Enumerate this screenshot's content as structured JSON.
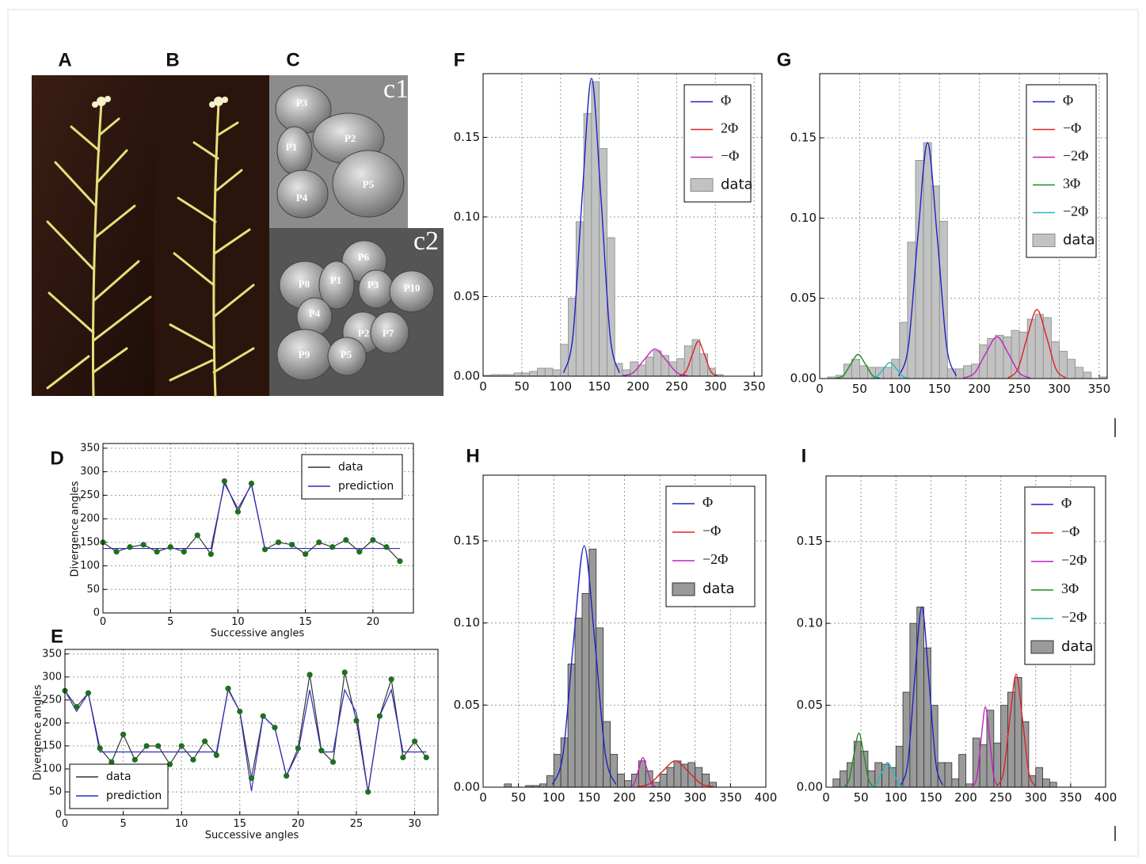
{
  "image_panels": {
    "labels": [
      "A",
      "B",
      "C"
    ],
    "c1": {
      "label": "c1",
      "cells": [
        "P3",
        "P1",
        "P2",
        "P4",
        "P5"
      ]
    },
    "c2": {
      "label": "c2",
      "cells": [
        "P6",
        "P8",
        "P1",
        "P3",
        "P10",
        "P4",
        "P2",
        "P7",
        "P9",
        "P5"
      ]
    }
  },
  "chart_data": [
    {
      "type": "line",
      "panel_label": "D",
      "x_label": "Successive angles",
      "y_label": "Divergence angles",
      "x": [
        0,
        1,
        2,
        3,
        4,
        5,
        6,
        7,
        8,
        9,
        10,
        11,
        12,
        13,
        14,
        15,
        16,
        17,
        18,
        19,
        20,
        21,
        22
      ],
      "series": [
        {
          "name": "data",
          "color": "#333333",
          "marker_color": "#1f6f1f",
          "values": [
            150,
            130,
            140,
            145,
            130,
            140,
            130,
            165,
            125,
            280,
            215,
            275,
            135,
            150,
            145,
            125,
            150,
            140,
            155,
            130,
            155,
            140,
            110
          ]
        },
        {
          "name": "prediction",
          "color": "#2b2bbf",
          "values": [
            137,
            137,
            137,
            137,
            137,
            137,
            137,
            137,
            137,
            275,
            222,
            272,
            137,
            137,
            137,
            137,
            137,
            137,
            137,
            137,
            137,
            137,
            137
          ]
        }
      ],
      "xlim": [
        0,
        23
      ],
      "ylim": [
        0,
        360
      ],
      "xticks": [
        0,
        5,
        10,
        15,
        20
      ],
      "yticks": [
        0,
        50,
        100,
        150,
        200,
        250,
        300,
        350
      ],
      "grid": true,
      "legend": "upper right"
    },
    {
      "type": "line",
      "panel_label": "E",
      "x_label": "Successive angles",
      "y_label": "Divergence angles",
      "x": [
        0,
        1,
        2,
        3,
        4,
        5,
        6,
        7,
        8,
        9,
        10,
        11,
        12,
        13,
        14,
        15,
        16,
        17,
        18,
        19,
        20,
        21,
        22,
        23,
        24,
        25,
        26,
        27,
        28,
        29,
        30,
        31
      ],
      "series": [
        {
          "name": "data",
          "color": "#333333",
          "marker_color": "#1f6f1f",
          "values": [
            270,
            235,
            265,
            145,
            115,
            175,
            120,
            150,
            150,
            110,
            150,
            120,
            160,
            130,
            275,
            225,
            80,
            215,
            190,
            85,
            145,
            305,
            140,
            115,
            310,
            205,
            50,
            215,
            295,
            125,
            160,
            125
          ]
        },
        {
          "name": "prediction",
          "color": "#2b2bbf",
          "values": [
            270,
            225,
            265,
            137,
            137,
            137,
            137,
            137,
            137,
            137,
            137,
            137,
            137,
            137,
            272,
            225,
            52,
            215,
            190,
            85,
            137,
            272,
            137,
            137,
            272,
            222,
            50,
            215,
            272,
            137,
            137,
            137
          ]
        }
      ],
      "xlim": [
        0,
        32
      ],
      "ylim": [
        0,
        360
      ],
      "xticks": [
        0,
        5,
        10,
        15,
        20,
        25,
        30
      ],
      "yticks": [
        0,
        50,
        100,
        150,
        200,
        250,
        300,
        350
      ],
      "grid": true,
      "legend": "lower left"
    },
    {
      "type": "histogram",
      "panel_label": "F",
      "name": "data",
      "color": "#c2c2c2",
      "edge_color": "#8a8a8a",
      "bins": [
        0,
        10,
        20,
        30,
        40,
        50,
        60,
        70,
        80,
        90,
        100,
        110,
        120,
        130,
        140,
        150,
        160,
        170,
        180,
        190,
        200,
        210,
        220,
        230,
        240,
        250,
        260,
        270,
        280,
        290,
        300,
        310,
        320,
        330,
        340,
        350,
        360
      ],
      "values": [
        0.0005,
        0.001,
        0.001,
        0.001,
        0.002,
        0.002,
        0.003,
        0.005,
        0.005,
        0.004,
        0.02,
        0.049,
        0.097,
        0.165,
        0.185,
        0.143,
        0.087,
        0.008,
        0.004,
        0.009,
        0.007,
        0.012,
        0.016,
        0.013,
        0.009,
        0.011,
        0.019,
        0.023,
        0.014,
        0.005,
        0.001,
        0,
        0,
        0,
        0,
        0
      ],
      "series": [
        {
          "name": "Φ",
          "color": "#2020c8",
          "x": [
            104,
            116,
            128,
            140,
            152,
            164,
            176
          ],
          "values": [
            0.0021,
            0.0253,
            0.1134,
            0.187,
            0.1134,
            0.0253,
            0.0021
          ]
        },
        {
          "name": "2Φ",
          "color": "#e02020",
          "x": [
            254,
            262,
            270,
            278,
            286,
            294,
            302
          ],
          "values": [
            0.0002,
            0.003,
            0.0133,
            0.022,
            0.0133,
            0.003,
            0.0002
          ]
        },
        {
          "name": "−Φ",
          "color": "#c020c0",
          "x": [
            180,
            194,
            208,
            222,
            236,
            250,
            264
          ],
          "values": [
            0.0002,
            0.0023,
            0.0103,
            0.017,
            0.0103,
            0.0023,
            0.0002
          ]
        }
      ],
      "xlim": [
        0,
        360
      ],
      "ylim": [
        0,
        0.19
      ],
      "xticks": [
        0,
        50,
        100,
        150,
        200,
        250,
        300,
        350
      ],
      "yticks": [
        {
          "value": 0,
          "label": "0.00"
        },
        0.05,
        {
          "value": 0.1,
          "label": "0.10"
        },
        0.15
      ],
      "grid": true,
      "legend": "upper right"
    },
    {
      "type": "histogram",
      "panel_label": "G",
      "name": "data",
      "color": "#c2c2c2",
      "edge_color": "#8a8a8a",
      "bins": [
        0,
        10,
        20,
        30,
        40,
        50,
        60,
        70,
        80,
        90,
        100,
        110,
        120,
        130,
        140,
        150,
        160,
        170,
        180,
        190,
        200,
        210,
        220,
        230,
        240,
        250,
        260,
        270,
        280,
        290,
        300,
        310,
        320,
        330,
        340,
        350,
        360
      ],
      "values": [
        0,
        0.001,
        0.002,
        0.009,
        0.012,
        0.008,
        0.007,
        0.007,
        0.007,
        0.012,
        0.035,
        0.085,
        0.136,
        0.147,
        0.12,
        0.098,
        0.006,
        0.006,
        0.008,
        0.009,
        0.021,
        0.025,
        0.027,
        0.026,
        0.03,
        0.029,
        0.037,
        0.04,
        0.038,
        0.023,
        0.017,
        0.012,
        0.007,
        0.004,
        0,
        0.001
      ],
      "series": [
        {
          "name": "Φ",
          "color": "#2020c8",
          "x": [
            99,
            111,
            123,
            135,
            147,
            159,
            171
          ],
          "values": [
            0.0016,
            0.0199,
            0.0892,
            0.147,
            0.0892,
            0.0199,
            0.0016
          ]
        },
        {
          "name": "−Φ",
          "color": "#e02020",
          "x": [
            236,
            248,
            260,
            272,
            284,
            296,
            308
          ],
          "values": [
            0.0005,
            0.0058,
            0.0261,
            0.043,
            0.0261,
            0.0058,
            0.0005
          ]
        },
        {
          "name": "−2Φ",
          "color": "#c020c0",
          "x": [
            180,
            194,
            208,
            222,
            236,
            250,
            264
          ],
          "values": [
            0.0003,
            0.0035,
            0.0158,
            0.026,
            0.0158,
            0.0035,
            0.0003
          ]
        },
        {
          "name": "3Φ",
          "color": "#208a20",
          "x": [
            21,
            30,
            39,
            48,
            57,
            66,
            75
          ],
          "values": [
            0.0002,
            0.002,
            0.0091,
            0.015,
            0.0091,
            0.002,
            0.0002
          ]
        },
        {
          "name": "−2Φ",
          "color": "#20b8c0",
          "x": [
            64,
            72,
            80,
            88,
            96,
            104,
            112
          ],
          "values": [
            0.0001,
            0.0014,
            0.0061,
            0.01,
            0.0061,
            0.0014,
            0.0001
          ]
        }
      ],
      "xlim": [
        0,
        360
      ],
      "ylim": [
        0,
        0.19
      ],
      "xticks": [
        0,
        50,
        100,
        150,
        200,
        250,
        300,
        350
      ],
      "yticks": [
        {
          "value": 0,
          "label": "0.00"
        },
        0.05,
        {
          "value": 0.1,
          "label": "0.10"
        },
        0.15
      ],
      "grid": true,
      "legend": "upper right"
    },
    {
      "type": "histogram",
      "panel_label": "H",
      "name": "data",
      "color": "#9a9a9a",
      "edge_color": "#333333",
      "bins": [
        0,
        10,
        20,
        30,
        40,
        50,
        60,
        70,
        80,
        90,
        100,
        110,
        120,
        130,
        140,
        150,
        160,
        170,
        180,
        190,
        200,
        210,
        220,
        230,
        240,
        250,
        260,
        270,
        280,
        290,
        300,
        310,
        320,
        330
      ],
      "values": [
        0,
        0,
        0,
        0.002,
        0,
        0,
        0.001,
        0.001,
        0.002,
        0.007,
        0.02,
        0.03,
        0.075,
        0.103,
        0.118,
        0.145,
        0.097,
        0.04,
        0.02,
        0.008,
        0.004,
        0.008,
        0.016,
        0.01,
        0.003,
        0.008,
        0.012,
        0.016,
        0.014,
        0.015,
        0.012,
        0.008,
        0.003
      ],
      "series": [
        {
          "name": "Φ",
          "color": "#2020c8",
          "x": [
            98,
            113,
            128,
            143,
            158,
            173,
            188
          ],
          "values": [
            0.0016,
            0.0199,
            0.0892,
            0.147,
            0.0892,
            0.0199,
            0.0016
          ]
        },
        {
          "name": "−Φ",
          "color": "#e02020",
          "x": [
            218,
            236,
            254,
            272,
            290,
            308,
            326
          ],
          "values": [
            0.0002,
            0.0022,
            0.0097,
            0.016,
            0.0097,
            0.0022,
            0.0002
          ]
        },
        {
          "name": "−2Φ",
          "color": "#c020c0",
          "x": [
            208,
            214,
            220,
            226,
            232,
            238,
            244
          ],
          "values": [
            0.0002,
            0.0024,
            0.0109,
            0.018,
            0.0109,
            0.0024,
            0.0002
          ]
        }
      ],
      "xlim": [
        0,
        400
      ],
      "ylim": [
        0,
        0.19
      ],
      "xticks": [
        0,
        50,
        100,
        150,
        200,
        250,
        300,
        350,
        400
      ],
      "yticks": [
        {
          "value": 0,
          "label": "0.00"
        },
        0.05,
        {
          "value": 0.1,
          "label": "0.10"
        },
        0.15
      ],
      "grid": true,
      "legend": "upper right"
    },
    {
      "type": "histogram",
      "panel_label": "I",
      "name": "data",
      "color": "#9a9a9a",
      "edge_color": "#333333",
      "bins": [
        0,
        10,
        20,
        30,
        40,
        50,
        60,
        70,
        80,
        90,
        100,
        110,
        120,
        130,
        140,
        150,
        160,
        170,
        180,
        190,
        200,
        210,
        220,
        230,
        240,
        250,
        260,
        270,
        280,
        290,
        300,
        310,
        320,
        330
      ],
      "values": [
        0,
        0.005,
        0.01,
        0.015,
        0.028,
        0.022,
        0.01,
        0.015,
        0.014,
        0.012,
        0.025,
        0.058,
        0.1,
        0.11,
        0.085,
        0.05,
        0.015,
        0.015,
        0.005,
        0.02,
        0.002,
        0.03,
        0.026,
        0.047,
        0.027,
        0.05,
        0.058,
        0.067,
        0.04,
        0.007,
        0.012,
        0.005,
        0.003
      ],
      "series": [
        {
          "name": "Φ",
          "color": "#2020c8",
          "x": [
            107,
            117,
            127,
            137,
            147,
            157,
            167
          ],
          "values": [
            0.0012,
            0.0149,
            0.0667,
            0.11,
            0.0667,
            0.0149,
            0.0012
          ]
        },
        {
          "name": "−Φ",
          "color": "#e02020",
          "x": [
            245,
            254,
            263,
            272,
            281,
            290,
            299
          ],
          "values": [
            0.0008,
            0.0093,
            0.0418,
            0.069,
            0.0418,
            0.0093,
            0.0008
          ]
        },
        {
          "name": "−2Φ",
          "color": "#c020c0",
          "x": [
            210,
            216,
            222,
            228,
            234,
            240,
            246
          ],
          "values": [
            0.0005,
            0.0066,
            0.0297,
            0.049,
            0.0297,
            0.0066,
            0.0005
          ]
        },
        {
          "name": "3Φ",
          "color": "#208a20",
          "x": [
            26,
            33,
            40,
            47,
            54,
            61,
            68
          ],
          "values": [
            0.0004,
            0.0045,
            0.02,
            0.033,
            0.02,
            0.0045,
            0.0004
          ]
        },
        {
          "name": "−2Φ",
          "color": "#20b8c0",
          "x": [
            64,
            72,
            80,
            88,
            96,
            104,
            112
          ],
          "values": [
            0.0002,
            0.002,
            0.0091,
            0.015,
            0.0091,
            0.002,
            0.0002
          ]
        }
      ],
      "xlim": [
        0,
        400
      ],
      "ylim": [
        0,
        0.19
      ],
      "xticks": [
        0,
        50,
        100,
        150,
        200,
        250,
        300,
        350,
        400
      ],
      "yticks": [
        {
          "value": 0,
          "label": "0.00"
        },
        0.05,
        {
          "value": 0.1,
          "label": "0.10"
        },
        0.15
      ],
      "grid": true,
      "legend": "upper right"
    }
  ]
}
